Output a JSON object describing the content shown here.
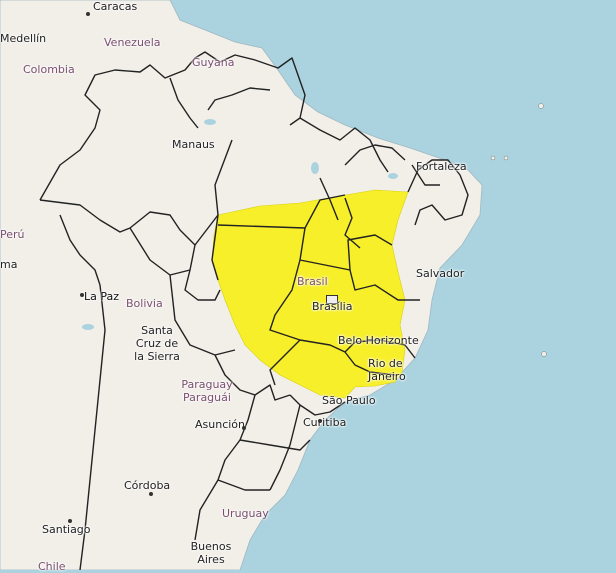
{
  "map": {
    "alert_color": "#f8f020",
    "land_color": "#f2efe9",
    "water_color": "#aad3df",
    "labels": {
      "caracas": "Caracas",
      "medellin": "Medellín",
      "venezuela": "Venezuela",
      "colombia": "Colombia",
      "guyana": "Guyana",
      "manaus": "Manaus",
      "fortaleza": "Fortaleza",
      "peru": "Perú",
      "brasil": "Brasil",
      "salvador": "Salvador",
      "la_paz": "La Paz",
      "bolivia": "Bolivia",
      "santa_cruz": "Santa\nCruz de\nla Sierra",
      "brasilia": "Brasília",
      "belo_horizonte": "Belo Horizonte",
      "rio": "Rio de\nJaneiro",
      "paraguay": "Paraguay\nParaguái",
      "sao_paulo": "São Paulo",
      "asuncion": "Asunción",
      "curitiba": "Curitiba",
      "cordoba": "Córdoba",
      "uruguay": "Uruguay",
      "santiago": "Santiago",
      "buenos_aires": "Buenos\nAires",
      "chile": "Chile",
      "ma": "ma"
    }
  }
}
